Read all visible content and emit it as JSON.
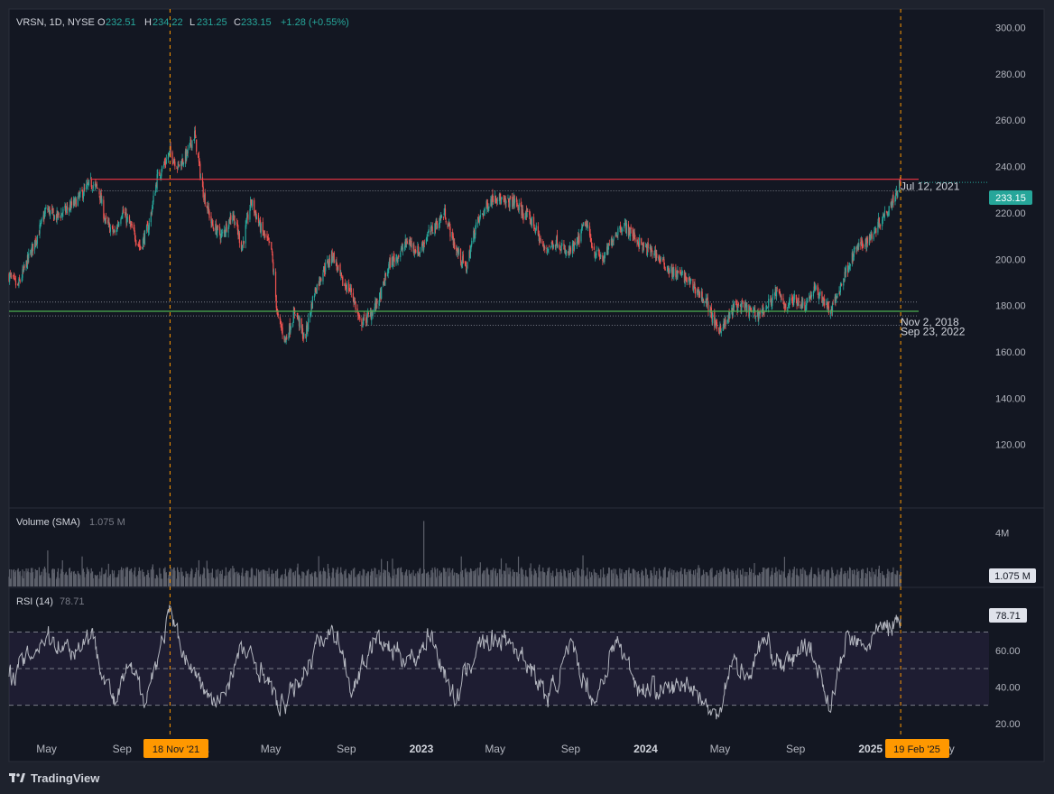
{
  "header": {
    "symbol": "VRSN, 1D, NYSE",
    "o_label": "O",
    "o_value": "232.51",
    "h_label": "H",
    "h_value": "234.22",
    "l_label": "L",
    "l_value": "231.25",
    "c_label": "C",
    "c_value": "233.15",
    "change": "+1.28 (+0.55%)"
  },
  "volume_pane": {
    "title": "Volume (SMA)",
    "value": "1.075 M",
    "last_badge": "1.075 M"
  },
  "rsi_pane": {
    "title": "RSI (14)",
    "value": "78.71",
    "last_badge": "78.71"
  },
  "price_badge": "233.15",
  "time_badges": {
    "left": "18 Nov '21",
    "right": "19 Feb '25"
  },
  "footer": {
    "brand": "TradingView"
  },
  "colors": {
    "up": "#26a69a",
    "down": "#ef5350",
    "resistance": "#f23645",
    "support": "#4caf50",
    "crosshair": "#ff9800"
  },
  "chart_data": [
    {
      "type": "candlestick",
      "title": "",
      "ylim": [
        100,
        308
      ],
      "y_ticks": [
        "300.00",
        "280.00",
        "260.00",
        "240.00",
        "220.00",
        "200.00",
        "180.00",
        "160.00",
        "140.00",
        "120.00"
      ],
      "x_ticks": [
        "May",
        "Sep",
        "2022",
        "May",
        "Sep",
        "2023",
        "May",
        "Sep",
        "2024",
        "May",
        "Sep",
        "2025",
        "May"
      ],
      "x_range": [
        "2021-03-01",
        "2025-07-01"
      ],
      "close_path": [
        [
          "2021-03-01",
          193
        ],
        [
          "2021-03-15",
          188
        ],
        [
          "2021-04-01",
          200
        ],
        [
          "2021-04-20",
          213
        ],
        [
          "2021-05-01",
          222
        ],
        [
          "2021-05-15",
          218
        ],
        [
          "2021-06-01",
          221
        ],
        [
          "2021-06-15",
          224
        ],
        [
          "2021-07-12",
          233
        ],
        [
          "2021-07-25",
          230
        ],
        [
          "2021-08-05",
          216
        ],
        [
          "2021-08-20",
          211
        ],
        [
          "2021-09-01",
          221
        ],
        [
          "2021-09-15",
          214
        ],
        [
          "2021-10-01",
          205
        ],
        [
          "2021-10-15",
          215
        ],
        [
          "2021-10-28",
          235
        ],
        [
          "2021-11-18",
          246
        ],
        [
          "2021-12-01",
          240
        ],
        [
          "2021-12-15",
          245
        ],
        [
          "2021-12-28",
          254
        ],
        [
          "2022-01-10",
          230
        ],
        [
          "2022-01-25",
          215
        ],
        [
          "2022-02-10",
          210
        ],
        [
          "2022-02-28",
          220
        ],
        [
          "2022-03-15",
          205
        ],
        [
          "2022-03-30",
          225
        ],
        [
          "2022-04-15",
          213
        ],
        [
          "2022-05-02",
          204
        ],
        [
          "2022-05-12",
          175
        ],
        [
          "2022-05-25",
          165
        ],
        [
          "2022-06-10",
          178
        ],
        [
          "2022-06-25",
          165
        ],
        [
          "2022-07-10",
          185
        ],
        [
          "2022-07-25",
          195
        ],
        [
          "2022-08-10",
          202
        ],
        [
          "2022-08-25",
          190
        ],
        [
          "2022-09-10",
          186
        ],
        [
          "2022-09-23",
          172
        ],
        [
          "2022-10-10",
          176
        ],
        [
          "2022-10-25",
          183
        ],
        [
          "2022-11-10",
          198
        ],
        [
          "2022-11-25",
          202
        ],
        [
          "2022-12-10",
          208
        ],
        [
          "2022-12-28",
          203
        ],
        [
          "2023-01-10",
          210
        ],
        [
          "2023-01-25",
          215
        ],
        [
          "2023-02-08",
          220
        ],
        [
          "2023-02-25",
          205
        ],
        [
          "2023-03-15",
          196
        ],
        [
          "2023-03-30",
          214
        ],
        [
          "2023-04-15",
          222
        ],
        [
          "2023-05-01",
          228
        ],
        [
          "2023-05-15",
          224
        ],
        [
          "2023-06-01",
          225
        ],
        [
          "2023-06-15",
          220
        ],
        [
          "2023-07-01",
          216
        ],
        [
          "2023-07-20",
          204
        ],
        [
          "2023-08-10",
          208
        ],
        [
          "2023-08-25",
          202
        ],
        [
          "2023-09-10",
          206
        ],
        [
          "2023-09-25",
          216
        ],
        [
          "2023-10-10",
          203
        ],
        [
          "2023-10-25",
          200
        ],
        [
          "2023-11-10",
          210
        ],
        [
          "2023-11-25",
          215
        ],
        [
          "2023-12-10",
          211
        ],
        [
          "2023-12-28",
          205
        ],
        [
          "2024-01-15",
          203
        ],
        [
          "2024-01-30",
          198
        ],
        [
          "2024-02-15",
          194
        ],
        [
          "2024-03-01",
          193
        ],
        [
          "2024-03-20",
          188
        ],
        [
          "2024-04-10",
          181
        ],
        [
          "2024-04-25",
          170
        ],
        [
          "2024-05-10",
          172
        ],
        [
          "2024-05-25",
          180
        ],
        [
          "2024-06-10",
          179
        ],
        [
          "2024-06-28",
          176
        ],
        [
          "2024-07-15",
          179
        ],
        [
          "2024-08-01",
          186
        ],
        [
          "2024-08-15",
          180
        ],
        [
          "2024-09-01",
          183
        ],
        [
          "2024-09-15",
          180
        ],
        [
          "2024-10-01",
          187
        ],
        [
          "2024-10-15",
          183
        ],
        [
          "2024-10-28",
          177
        ],
        [
          "2024-11-10",
          186
        ],
        [
          "2024-11-25",
          197
        ],
        [
          "2024-12-10",
          205
        ],
        [
          "2024-12-28",
          208
        ],
        [
          "2025-01-15",
          216
        ],
        [
          "2025-02-01",
          223
        ],
        [
          "2025-02-19",
          233.15
        ]
      ],
      "horizontal_lines": [
        {
          "price": 234.5,
          "style": "solid",
          "color": "resistance"
        },
        {
          "price": 229.5,
          "style": "dotted",
          "label": "Jul 12, 2021"
        },
        {
          "price": 177.5,
          "style": "solid",
          "color": "support"
        },
        {
          "price": 175.5,
          "style": "dotted",
          "label": "Nov 2, 2018"
        },
        {
          "price": 171.5,
          "style": "dotted",
          "label": "Sep 23, 2022"
        },
        {
          "price": 181.5,
          "style": "dotted"
        }
      ],
      "vertical_markers": [
        "2021-11-18",
        "2025-02-19"
      ],
      "last_price": 233.15
    },
    {
      "type": "bar",
      "title": "Volume (SMA)",
      "y_ticks": [
        "4M"
      ],
      "last_value": "1.075 M"
    },
    {
      "type": "line",
      "title": "RSI (14)",
      "ylim": [
        15,
        88
      ],
      "y_ticks": [
        "60.00",
        "40.00",
        "20.00"
      ],
      "bands": [
        30,
        50,
        70
      ],
      "path": [
        [
          "2021-03-01",
          45
        ],
        [
          "2021-04-15",
          62
        ],
        [
          "2021-05-01",
          68
        ],
        [
          "2021-06-15",
          60
        ],
        [
          "2021-07-12",
          70
        ],
        [
          "2021-08-20",
          30
        ],
        [
          "2021-09-10",
          50
        ],
        [
          "2021-10-10",
          35
        ],
        [
          "2021-11-18",
          79
        ],
        [
          "2021-12-15",
          55
        ],
        [
          "2022-01-10",
          40
        ],
        [
          "2022-02-01",
          28
        ],
        [
          "2022-03-15",
          60
        ],
        [
          "2022-04-20",
          48
        ],
        [
          "2022-05-15",
          27
        ],
        [
          "2022-06-10",
          40
        ],
        [
          "2022-07-15",
          62
        ],
        [
          "2022-08-15",
          72
        ],
        [
          "2022-09-10",
          38
        ],
        [
          "2022-10-15",
          66
        ],
        [
          "2022-11-15",
          60
        ],
        [
          "2022-12-20",
          55
        ],
        [
          "2023-01-15",
          70
        ],
        [
          "2023-02-25",
          32
        ],
        [
          "2023-04-01",
          62
        ],
        [
          "2023-05-15",
          68
        ],
        [
          "2023-06-20",
          55
        ],
        [
          "2023-07-25",
          34
        ],
        [
          "2023-09-01",
          60
        ],
        [
          "2023-10-10",
          32
        ],
        [
          "2023-11-15",
          66
        ],
        [
          "2023-12-20",
          40
        ],
        [
          "2024-02-01",
          38
        ],
        [
          "2024-03-15",
          42
        ],
        [
          "2024-04-25",
          22
        ],
        [
          "2024-05-20",
          55
        ],
        [
          "2024-06-15",
          45
        ],
        [
          "2024-07-10",
          66
        ],
        [
          "2024-08-15",
          50
        ],
        [
          "2024-09-20",
          65
        ],
        [
          "2024-10-28",
          30
        ],
        [
          "2024-11-25",
          68
        ],
        [
          "2024-12-20",
          60
        ],
        [
          "2025-01-15",
          70
        ],
        [
          "2025-02-19",
          78.71
        ]
      ],
      "last_value": 78.71
    }
  ]
}
